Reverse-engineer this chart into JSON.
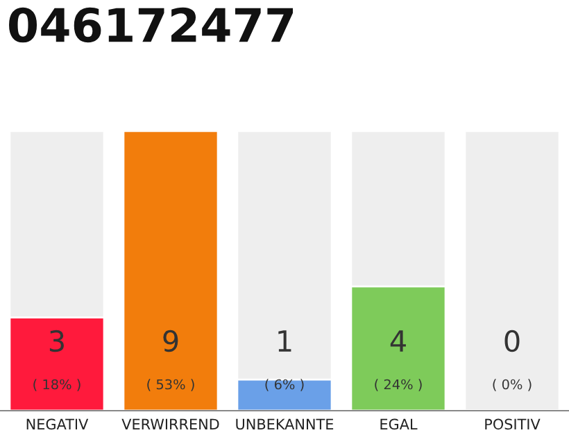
{
  "chart_data": {
    "type": "bar",
    "title": "046172477",
    "categories": [
      "NEGATIV",
      "VERWIRREND",
      "UNBEKANNTE",
      "EGAL",
      "POSITIV"
    ],
    "values": [
      3,
      9,
      1,
      4,
      0
    ],
    "colors": [
      "#ff1a3c",
      "#f27d0c",
      "#6aa0e8",
      "#7ecb5a",
      null
    ],
    "ylim": [
      0,
      9
    ],
    "data_labels": true,
    "annotations": [
      "( 18% )",
      "( 53% )",
      "( 6% )",
      "( 24% )",
      "( 0% )"
    ]
  }
}
